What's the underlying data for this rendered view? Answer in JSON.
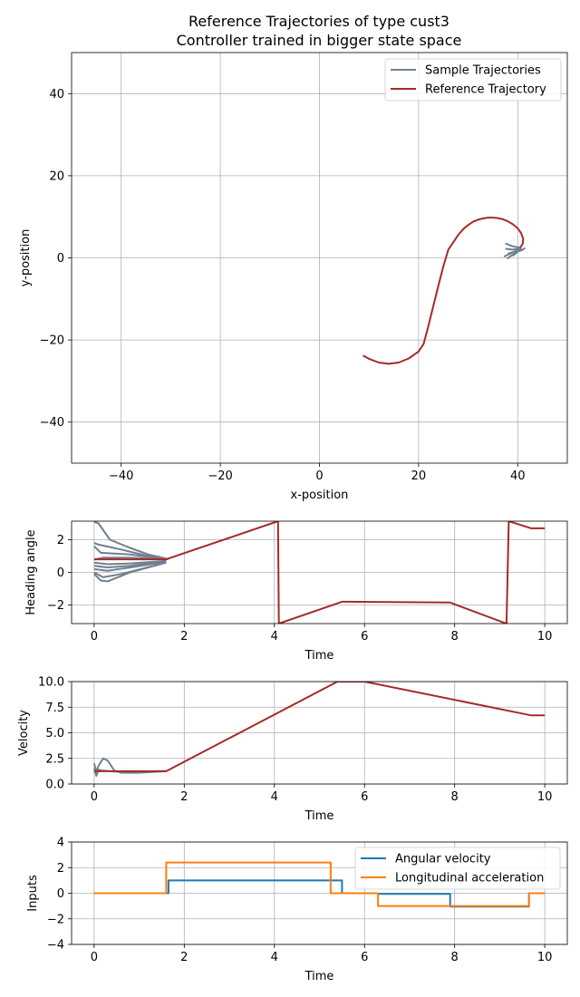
{
  "chart_data": [
    {
      "type": "line",
      "title": "Reference Trajectories of type cust3",
      "subtitle": "Controller trained in bigger state space",
      "xlabel": "x-position",
      "ylabel": "y-position",
      "xlim": [
        -50,
        50
      ],
      "ylim": [
        -50,
        50
      ],
      "xticks": [
        -40,
        -20,
        0,
        20,
        40
      ],
      "yticks": [
        -40,
        -20,
        0,
        20,
        40
      ],
      "grid": true,
      "legend_position": "top-right",
      "series": [
        {
          "name": "Sample Trajectories",
          "color": "#708090",
          "lines": [
            [
              [
                37.5,
                3.5
              ],
              [
                39,
                2.8
              ],
              [
                40.5,
                2.5
              ]
            ],
            [
              [
                37.5,
                2.2
              ],
              [
                39,
                2.0
              ],
              [
                40.5,
                2.3
              ]
            ],
            [
              [
                38,
                1.0
              ],
              [
                39.5,
                1.6
              ],
              [
                40.6,
                2.4
              ]
            ],
            [
              [
                37.2,
                0.3
              ],
              [
                39,
                1.3
              ],
              [
                40.5,
                2.2
              ]
            ],
            [
              [
                37.8,
                -0.2
              ],
              [
                39.3,
                1.0
              ],
              [
                40.5,
                2.1
              ]
            ],
            [
              [
                39,
                0.5
              ],
              [
                40,
                1.5
              ],
              [
                40.8,
                2.3
              ]
            ],
            [
              [
                40.2,
                1.6
              ],
              [
                41,
                2.0
              ],
              [
                41.5,
                2.4
              ]
            ]
          ]
        },
        {
          "name": "Reference Trajectory",
          "color": "#a52a2a",
          "points": [
            [
              8.8,
              -23.8
            ],
            [
              10,
              -24.6
            ],
            [
              12,
              -25.5
            ],
            [
              14,
              -25.8
            ],
            [
              16,
              -25.5
            ],
            [
              18,
              -24.5
            ],
            [
              20,
              -22.8
            ],
            [
              21,
              -21
            ],
            [
              22,
              -16.5
            ],
            [
              23,
              -11.6
            ],
            [
              24,
              -6.7
            ],
            [
              25,
              -2
            ],
            [
              26,
              2
            ],
            [
              27,
              3.8
            ],
            [
              28,
              5.6
            ],
            [
              29,
              7
            ],
            [
              30,
              8
            ],
            [
              31,
              8.8
            ],
            [
              32,
              9.3
            ],
            [
              33,
              9.6
            ],
            [
              34,
              9.8
            ],
            [
              35,
              9.8
            ],
            [
              36,
              9.7
            ],
            [
              37,
              9.4
            ],
            [
              38,
              8.9
            ],
            [
              39,
              8.2
            ],
            [
              40,
              7.2
            ],
            [
              40.7,
              6.0
            ],
            [
              41.1,
              4.6
            ],
            [
              41,
              3.4
            ],
            [
              40.5,
              2.5
            ]
          ]
        }
      ]
    },
    {
      "type": "line",
      "xlabel": "Time",
      "ylabel": "Heading angle",
      "xlim": [
        -0.5,
        10.5
      ],
      "ylim": [
        -3.14,
        3.14
      ],
      "xticks": [
        0,
        2,
        4,
        6,
        8,
        10
      ],
      "yticks": [
        -2,
        0,
        2
      ],
      "grid": true,
      "series": [
        {
          "color": "#708090",
          "lines": [
            [
              [
                0,
                3.1
              ],
              [
                0.1,
                3.0
              ],
              [
                0.35,
                2.0
              ],
              [
                0.8,
                1.5
              ],
              [
                1.2,
                1.1
              ],
              [
                1.6,
                0.85
              ]
            ],
            [
              [
                0,
                1.8
              ],
              [
                0.1,
                1.7
              ],
              [
                0.6,
                1.4
              ],
              [
                1.2,
                1.0
              ],
              [
                1.65,
                0.8
              ]
            ],
            [
              [
                0,
                1.6
              ],
              [
                0.15,
                1.2
              ],
              [
                0.8,
                1.1
              ],
              [
                1.6,
                0.8
              ]
            ],
            [
              [
                0,
                0.8
              ],
              [
                0.2,
                0.9
              ],
              [
                0.8,
                0.9
              ],
              [
                1.6,
                0.8
              ]
            ],
            [
              [
                0,
                0.6
              ],
              [
                0.3,
                0.5
              ],
              [
                0.8,
                0.55
              ],
              [
                1.6,
                0.7
              ]
            ],
            [
              [
                0,
                0.4
              ],
              [
                0.3,
                0.3
              ],
              [
                0.8,
                0.4
              ],
              [
                1.6,
                0.7
              ]
            ],
            [
              [
                0,
                0.2
              ],
              [
                0.3,
                0.1
              ],
              [
                0.8,
                0.3
              ],
              [
                1.6,
                0.65
              ]
            ],
            [
              [
                0,
                0.0
              ],
              [
                0.2,
                -0.3
              ],
              [
                0.6,
                -0.1
              ],
              [
                1.6,
                0.6
              ]
            ],
            [
              [
                0,
                -0.1
              ],
              [
                0.15,
                -0.5
              ],
              [
                0.3,
                -0.55
              ],
              [
                0.8,
                0.0
              ],
              [
                1.6,
                0.6
              ]
            ]
          ]
        },
        {
          "color": "#a52a2a",
          "lines": [
            [
              [
                0,
                0.8
              ],
              [
                1.6,
                0.8
              ],
              [
                4.08,
                3.14
              ]
            ],
            [
              [
                4.08,
                3.14
              ],
              [
                4.1,
                -3.14
              ]
            ],
            [
              [
                4.1,
                -3.14
              ],
              [
                5.5,
                -1.8
              ],
              [
                7.9,
                -1.85
              ],
              [
                9.15,
                -3.14
              ]
            ],
            [
              [
                9.15,
                -3.14
              ],
              [
                9.2,
                3.14
              ]
            ],
            [
              [
                9.2,
                3.14
              ],
              [
                9.7,
                2.7
              ],
              [
                10,
                2.7
              ]
            ]
          ]
        }
      ]
    },
    {
      "type": "line",
      "xlabel": "Time",
      "ylabel": "Velocity",
      "xlim": [
        -0.5,
        10.5
      ],
      "ylim": [
        0,
        10
      ],
      "xticks": [
        0,
        2,
        4,
        6,
        8,
        10
      ],
      "yticks": [
        0.0,
        2.5,
        5.0,
        7.5,
        10.0
      ],
      "ytick_labels": [
        "0.0",
        "2.5",
        "5.0",
        "7.5",
        "10.0"
      ],
      "grid": true,
      "series": [
        {
          "color": "#708090",
          "lines": [
            [
              [
                0,
                2.0
              ],
              [
                0.05,
                1.2
              ],
              [
                0.1,
                1.8
              ],
              [
                0.2,
                2.5
              ],
              [
                0.3,
                2.3
              ],
              [
                0.45,
                1.3
              ],
              [
                0.6,
                1.1
              ],
              [
                1.0,
                1.1
              ],
              [
                1.6,
                1.25
              ]
            ],
            [
              [
                0,
                1.5
              ],
              [
                0.05,
                0.8
              ],
              [
                0.1,
                1.4
              ],
              [
                0.2,
                1.3
              ],
              [
                0.5,
                1.2
              ],
              [
                1.6,
                1.25
              ]
            ]
          ]
        },
        {
          "color": "#a52a2a",
          "lines": [
            [
              [
                0,
                1.25
              ],
              [
                1.6,
                1.25
              ],
              [
                5.4,
                10.0
              ],
              [
                6,
                10.0
              ],
              [
                9.7,
                6.7
              ],
              [
                10,
                6.7
              ]
            ]
          ]
        }
      ]
    },
    {
      "type": "line",
      "xlabel": "Time",
      "ylabel": "Inputs",
      "xlim": [
        -0.5,
        10.5
      ],
      "ylim": [
        -4,
        4
      ],
      "xticks": [
        0,
        2,
        4,
        6,
        8,
        10
      ],
      "yticks": [
        -4,
        -2,
        0,
        2,
        4
      ],
      "grid": true,
      "legend_position": "top-right",
      "series": [
        {
          "name": "Angular velocity",
          "color": "#1f77b4",
          "points": [
            [
              0,
              0
            ],
            [
              1.65,
              0
            ],
            [
              1.65,
              1.0
            ],
            [
              5.5,
              1.0
            ],
            [
              5.5,
              0
            ],
            [
              6.3,
              0
            ],
            [
              6.3,
              -0.05
            ],
            [
              7.9,
              -0.05
            ],
            [
              7.9,
              -1.05
            ],
            [
              9.65,
              -1.05
            ],
            [
              9.65,
              0
            ],
            [
              10,
              0
            ]
          ]
        },
        {
          "name": "Longitudinal acceleration",
          "color": "#ff7f0e",
          "points": [
            [
              0,
              0
            ],
            [
              1.6,
              0
            ],
            [
              1.6,
              2.4
            ],
            [
              5.25,
              2.4
            ],
            [
              5.25,
              0
            ],
            [
              6.3,
              0
            ],
            [
              6.3,
              -1.0
            ],
            [
              9.65,
              -1.0
            ],
            [
              9.65,
              0
            ],
            [
              10,
              0
            ]
          ]
        }
      ]
    }
  ]
}
